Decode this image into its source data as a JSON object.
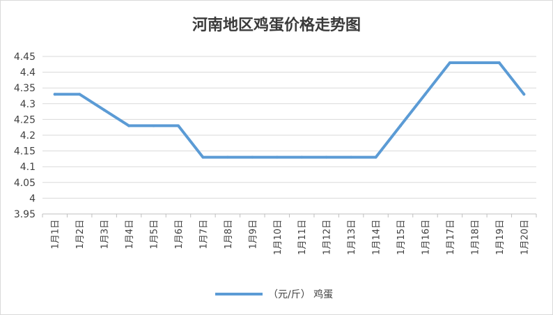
{
  "chart_data": {
    "type": "line",
    "title": "河南地区鸡蛋价格走势图",
    "categories": [
      "1月1日",
      "1月2日",
      "1月3日",
      "1月4日",
      "1月5日",
      "1月6日",
      "1月7日",
      "1月8日",
      "1月9日",
      "1月10日",
      "1月11日",
      "1月12日",
      "1月13日",
      "1月14日",
      "1月15日",
      "1月16日",
      "1月17日",
      "1月18日",
      "1月19日",
      "1月20日"
    ],
    "series": [
      {
        "name": "（元/斤） 鸡蛋",
        "values": [
          4.33,
          4.33,
          4.28,
          4.23,
          4.23,
          4.23,
          4.13,
          4.13,
          4.13,
          4.13,
          4.13,
          4.13,
          4.13,
          4.13,
          4.23,
          4.33,
          4.43,
          4.43,
          4.43,
          4.33
        ],
        "color": "#5b9bd5"
      }
    ],
    "ylim": [
      3.95,
      4.45
    ],
    "yticks": [
      "3.95",
      "4",
      "4.05",
      "4.1",
      "4.15",
      "4.2",
      "4.25",
      "4.3",
      "4.35",
      "4.4",
      "4.45"
    ],
    "grid": true,
    "legend": "bottom"
  }
}
